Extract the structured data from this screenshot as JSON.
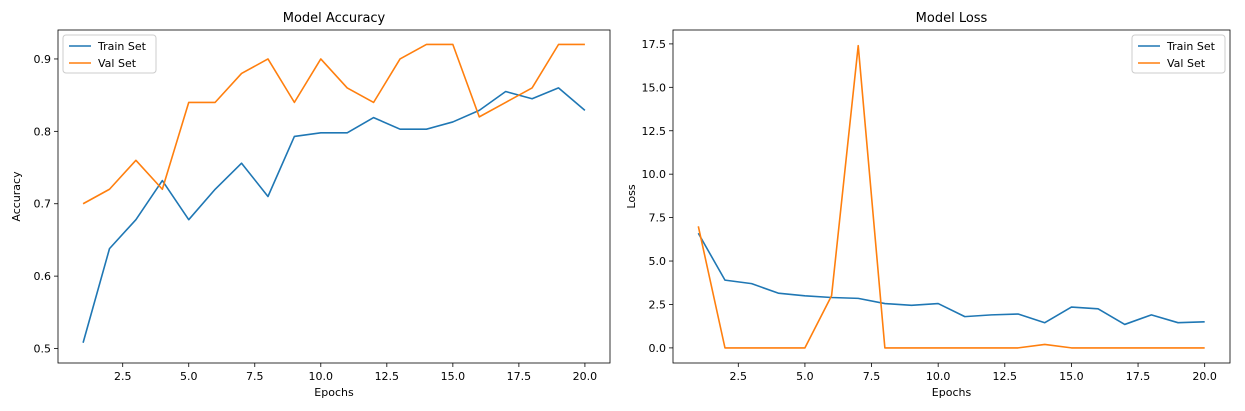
{
  "chart_data": [
    {
      "type": "line",
      "title": "Model Accuracy",
      "xlabel": "Epochs",
      "ylabel": "Accuracy",
      "xlim": [
        0.05,
        20.95
      ],
      "ylim": [
        0.48,
        0.94
      ],
      "xticks": [
        2.5,
        5.0,
        7.5,
        10.0,
        12.5,
        15.0,
        17.5,
        20.0
      ],
      "xtick_labels": [
        "2.5",
        "5.0",
        "7.5",
        "10.0",
        "12.5",
        "15.0",
        "17.5",
        "20.0"
      ],
      "yticks": [
        0.5,
        0.6,
        0.7,
        0.8,
        0.9
      ],
      "ytick_labels": [
        "0.5",
        "0.6",
        "0.7",
        "0.8",
        "0.9"
      ],
      "grid": false,
      "legend_position": "upper-left",
      "x": [
        1,
        2,
        3,
        4,
        5,
        6,
        7,
        8,
        9,
        10,
        11,
        12,
        13,
        14,
        15,
        16,
        17,
        18,
        19,
        20
      ],
      "series": [
        {
          "name": "Train Set",
          "color": "#1f77b4",
          "values": [
            0.508,
            0.638,
            0.678,
            0.732,
            0.678,
            0.72,
            0.756,
            0.71,
            0.793,
            0.798,
            0.798,
            0.819,
            0.803,
            0.803,
            0.813,
            0.829,
            0.855,
            0.845,
            0.86,
            0.829
          ]
        },
        {
          "name": "Val Set",
          "color": "#ff7f0e",
          "values": [
            0.7,
            0.72,
            0.76,
            0.72,
            0.84,
            0.84,
            0.88,
            0.9,
            0.84,
            0.9,
            0.86,
            0.84,
            0.9,
            0.92,
            0.92,
            0.82,
            0.84,
            0.86,
            0.92,
            0.92
          ]
        }
      ]
    },
    {
      "type": "line",
      "title": "Model Loss",
      "xlabel": "Epochs",
      "ylabel": "Loss",
      "xlim": [
        0.05,
        20.95
      ],
      "ylim": [
        -0.87,
        18.3
      ],
      "xticks": [
        2.5,
        5.0,
        7.5,
        10.0,
        12.5,
        15.0,
        17.5,
        20.0
      ],
      "xtick_labels": [
        "2.5",
        "5.0",
        "7.5",
        "10.0",
        "12.5",
        "15.0",
        "17.5",
        "20.0"
      ],
      "yticks": [
        0.0,
        2.5,
        5.0,
        7.5,
        10.0,
        12.5,
        15.0,
        17.5
      ],
      "ytick_labels": [
        "0.0",
        "2.5",
        "5.0",
        "7.5",
        "10.0",
        "12.5",
        "15.0",
        "17.5"
      ],
      "grid": false,
      "legend_position": "upper-right",
      "x": [
        1,
        2,
        3,
        4,
        5,
        6,
        7,
        8,
        9,
        10,
        11,
        12,
        13,
        14,
        15,
        16,
        17,
        18,
        19,
        20
      ],
      "series": [
        {
          "name": "Train Set",
          "color": "#1f77b4",
          "values": [
            6.6,
            3.9,
            3.7,
            3.15,
            3.0,
            2.9,
            2.85,
            2.55,
            2.45,
            2.55,
            1.8,
            1.9,
            1.95,
            1.45,
            2.35,
            2.25,
            1.35,
            1.9,
            1.45,
            1.5
          ]
        },
        {
          "name": "Val Set",
          "color": "#ff7f0e",
          "values": [
            7.0,
            0.0,
            0.0,
            0.0,
            0.0,
            3.0,
            17.4,
            0.0,
            0.0,
            0.0,
            0.0,
            0.0,
            0.0,
            0.2,
            0.0,
            0.0,
            0.0,
            0.0,
            0.0,
            0.0
          ]
        }
      ]
    }
  ]
}
